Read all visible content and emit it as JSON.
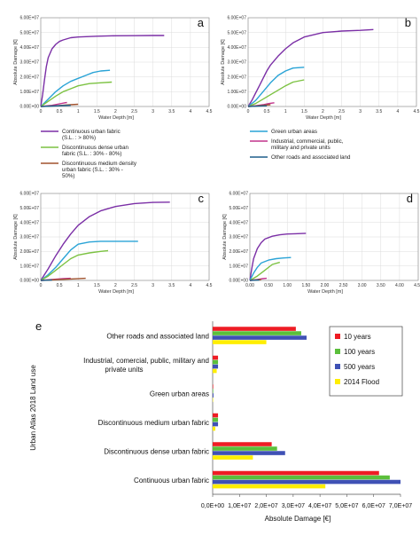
{
  "chart_data": [
    {
      "type": "line",
      "panel": "a",
      "xlabel": "Water Depth [m]",
      "ylabel": "Absolute Damage [€]",
      "xlim": [
        0,
        4.5
      ],
      "ylim": [
        0,
        60000000
      ],
      "xticks": [
        "0",
        "0.5",
        "1",
        "1.5",
        "2",
        "2.5",
        "3",
        "3.5",
        "4",
        "4.5"
      ],
      "yticks": [
        "0.00E+00",
        "1.00E+07",
        "2.00E+07",
        "3.00E+07",
        "4.00E+07",
        "5.00E+07",
        "6.00E+07"
      ],
      "series": [
        {
          "name": "Continuous urban fabric (S.L. : > 80%)",
          "color": "#7b2fa6",
          "x": [
            0,
            0.05,
            0.1,
            0.15,
            0.2,
            0.3,
            0.4,
            0.5,
            0.6,
            0.8,
            1.0,
            1.5,
            2.0,
            2.5,
            3.0,
            3.3
          ],
          "y": [
            0,
            8000000,
            18000000,
            27000000,
            33000000,
            39000000,
            42000000,
            44000000,
            45000000,
            46500000,
            47000000,
            47500000,
            47800000,
            47900000,
            48000000,
            48000000
          ]
        },
        {
          "name": "Green urban areas",
          "color": "#29a3d6",
          "x": [
            0,
            0.2,
            0.4,
            0.6,
            0.8,
            1.0,
            1.2,
            1.4,
            1.6,
            1.85
          ],
          "y": [
            0,
            5000000,
            10000000,
            14000000,
            17000000,
            19000000,
            21000000,
            23000000,
            24000000,
            24500000
          ]
        },
        {
          "name": "Discontinuous dense urban fabric (S.L. : 30% - 80%)",
          "color": "#7cc242",
          "x": [
            0,
            0.2,
            0.4,
            0.6,
            0.8,
            1.0,
            1.3,
            1.6,
            1.9
          ],
          "y": [
            0,
            3500000,
            7000000,
            10000000,
            12000000,
            14000000,
            15500000,
            16000000,
            16500000
          ]
        },
        {
          "name": "Industrial, commercial, public, military and private units",
          "color": "#c2338b",
          "x": [
            0,
            0.3,
            0.5,
            0.65,
            0.7
          ],
          "y": [
            0,
            800000,
            1800000,
            2500000,
            2700000
          ]
        },
        {
          "name": "Discontinuous medium density urban fabric (S.L. : 30% - 50%)",
          "color": "#a0522d",
          "x": [
            0,
            0.4,
            0.8,
            1.0
          ],
          "y": [
            0,
            500000,
            1200000,
            1500000
          ]
        },
        {
          "name": "Other roads and associated land",
          "color": "#1f5f8b",
          "x": [
            0,
            0.3,
            0.6,
            0.8
          ],
          "y": [
            0,
            300000,
            600000,
            800000
          ]
        }
      ]
    },
    {
      "type": "line",
      "panel": "b",
      "xlabel": "Water Depth [m]",
      "ylabel": "Absolute Damage [€]",
      "xlim": [
        0,
        4.5
      ],
      "ylim": [
        0,
        60000000
      ],
      "xticks": [
        "0",
        "0.5",
        "1",
        "1.5",
        "2",
        "2.5",
        "3",
        "3.5",
        "4",
        "4.5"
      ],
      "yticks": [
        "0.00E+00",
        "1.00E+07",
        "2.00E+07",
        "3.00E+07",
        "4.00E+07",
        "5.00E+07",
        "6.00E+07"
      ],
      "series": [
        {
          "name": "Continuous urban fabric (S.L. : > 80%)",
          "color": "#7b2fa6",
          "x": [
            0,
            0.1,
            0.2,
            0.3,
            0.4,
            0.5,
            0.6,
            0.8,
            1.0,
            1.2,
            1.5,
            2.0,
            2.5,
            3.0,
            3.35
          ],
          "y": [
            0,
            4000000,
            9000000,
            14000000,
            19000000,
            24000000,
            28000000,
            34000000,
            39000000,
            43000000,
            47000000,
            50000000,
            51000000,
            51500000,
            52000000
          ]
        },
        {
          "name": "Green urban areas",
          "color": "#29a3d6",
          "x": [
            0,
            0.2,
            0.4,
            0.6,
            0.8,
            1.0,
            1.2,
            1.5
          ],
          "y": [
            0,
            4000000,
            10000000,
            16000000,
            21000000,
            24000000,
            26000000,
            26500000
          ]
        },
        {
          "name": "Discontinuous dense urban fabric (S.L. : 30% - 80%)",
          "color": "#7cc242",
          "x": [
            0,
            0.2,
            0.4,
            0.6,
            0.8,
            1.0,
            1.2,
            1.5
          ],
          "y": [
            0,
            2000000,
            5000000,
            8000000,
            11000000,
            14000000,
            16500000,
            18000000
          ]
        },
        {
          "name": "Industrial, commercial, public, military and private units",
          "color": "#c2338b",
          "x": [
            0,
            0.2,
            0.4,
            0.55,
            0.7
          ],
          "y": [
            0,
            500000,
            1200000,
            2000000,
            2500000
          ]
        },
        {
          "name": "Discontinuous medium density urban fabric (S.L. : 30% - 50%)",
          "color": "#a0522d",
          "x": [
            0,
            0.2,
            0.4,
            0.6
          ],
          "y": [
            0,
            300000,
            800000,
            1200000
          ]
        },
        {
          "name": "Other roads and associated land",
          "color": "#1f5f8b",
          "x": [
            0,
            0.2,
            0.4,
            0.5
          ],
          "y": [
            0,
            200000,
            400000,
            500000
          ]
        }
      ]
    },
    {
      "type": "line",
      "panel": "c",
      "xlabel": "Water Depth [m]",
      "ylabel": "Absolute Damage [€]",
      "xlim": [
        0,
        4.5
      ],
      "ylim": [
        0,
        60000000
      ],
      "xticks": [
        "0",
        "0.5",
        "1",
        "1.5",
        "2",
        "2.5",
        "3",
        "3.5",
        "4",
        "4.5"
      ],
      "yticks": [
        "0.00E+00",
        "1.00E+07",
        "2.00E+07",
        "3.00E+07",
        "4.00E+07",
        "5.00E+07",
        "6.00E+07"
      ],
      "series": [
        {
          "name": "Continuous urban fabric (S.L. : > 80%)",
          "color": "#7b2fa6",
          "x": [
            0,
            0.2,
            0.4,
            0.6,
            0.8,
            1.0,
            1.3,
            1.6,
            2.0,
            2.5,
            3.0,
            3.45
          ],
          "y": [
            0,
            8000000,
            17000000,
            25000000,
            32000000,
            38000000,
            44000000,
            48000000,
            51000000,
            53000000,
            53800000,
            54000000
          ]
        },
        {
          "name": "Green urban areas",
          "color": "#29a3d6",
          "x": [
            0,
            0.2,
            0.4,
            0.6,
            0.8,
            1.0,
            1.3,
            1.6,
            2.0,
            2.6
          ],
          "y": [
            0,
            4000000,
            9000000,
            15000000,
            21000000,
            25000000,
            26500000,
            27000000,
            27000000,
            27000000
          ]
        },
        {
          "name": "Discontinuous dense urban fabric (S.L. : 30% - 80%)",
          "color": "#7cc242",
          "x": [
            0,
            0.2,
            0.4,
            0.6,
            0.8,
            1.0,
            1.3,
            1.6,
            1.8
          ],
          "y": [
            0,
            3000000,
            7000000,
            11000000,
            15000000,
            17500000,
            19000000,
            20000000,
            20500000
          ]
        },
        {
          "name": "Industrial, commercial, public, military and private units",
          "color": "#c2338b",
          "x": [
            0,
            0.3,
            0.6,
            0.8
          ],
          "y": [
            0,
            600000,
            1200000,
            1500000
          ]
        },
        {
          "name": "Discontinuous medium density urban fabric (S.L. : 30% - 50%)",
          "color": "#a0522d",
          "x": [
            0,
            0.4,
            0.8,
            1.2
          ],
          "y": [
            0,
            500000,
            1000000,
            1500000
          ]
        },
        {
          "name": "Other roads and associated land",
          "color": "#1f5f8b",
          "x": [
            0,
            0.2,
            0.3
          ],
          "y": [
            0,
            200000,
            300000
          ]
        }
      ]
    },
    {
      "type": "line",
      "panel": "d",
      "xlabel": "Water Depth [m]",
      "ylabel": "Absolute Damage [€]",
      "xlim": [
        0,
        4.5
      ],
      "ylim": [
        0,
        60000000
      ],
      "xticks": [
        "0.00",
        "0.50",
        "1.00",
        "1.50",
        "2.00",
        "2.50",
        "3.00",
        "3.50",
        "4.00",
        "4.50"
      ],
      "yticks": [
        "0.00E+00",
        "1.00E+07",
        "2.00E+07",
        "3.00E+07",
        "4.00E+07",
        "5.00E+07",
        "6.00E+07"
      ],
      "series": [
        {
          "name": "Continuous urban fabric (S.L. : > 80%)",
          "color": "#7b2fa6",
          "x": [
            0,
            0.05,
            0.1,
            0.2,
            0.3,
            0.4,
            0.6,
            0.8,
            1.0,
            1.2,
            1.5
          ],
          "y": [
            0,
            8000000,
            15000000,
            22000000,
            26000000,
            28500000,
            30500000,
            31500000,
            32000000,
            32200000,
            32500000
          ]
        },
        {
          "name": "Green urban areas",
          "color": "#29a3d6",
          "x": [
            0,
            0.1,
            0.2,
            0.3,
            0.5,
            0.7,
            0.9,
            1.1
          ],
          "y": [
            0,
            5000000,
            9000000,
            12000000,
            14000000,
            15000000,
            15500000,
            15800000
          ]
        },
        {
          "name": "Discontinuous dense urban fabric (S.L. : 30% - 80%)",
          "color": "#7cc242",
          "x": [
            0,
            0.2,
            0.4,
            0.6,
            0.8
          ],
          "y": [
            0,
            3000000,
            7000000,
            11000000,
            12500000
          ]
        },
        {
          "name": "Industrial, commercial, public, military and private units",
          "color": "#c2338b",
          "x": [
            0,
            0.2,
            0.35,
            0.45
          ],
          "y": [
            0,
            600000,
            1200000,
            1500000
          ]
        },
        {
          "name": "Discontinuous medium density urban fabric (S.L. : 30% - 50%)",
          "color": "#a0522d",
          "x": [
            0,
            0.2,
            0.3
          ],
          "y": [
            0,
            400000,
            600000
          ]
        },
        {
          "name": "Other roads and associated land",
          "color": "#1f5f8b",
          "x": [
            0,
            0.15,
            0.25
          ],
          "y": [
            0,
            200000,
            300000
          ]
        }
      ]
    },
    {
      "type": "bar",
      "orientation": "horizontal",
      "panel": "e",
      "xlabel": "Absolute Damage [€]",
      "ylabel": "Urban Atlas 2018 Land use",
      "xlim": [
        0,
        70000000
      ],
      "xticks": [
        "0,0E+00",
        "1,0E+07",
        "2,0E+07",
        "3,0E+07",
        "4,0E+07",
        "5,0E+07",
        "6,0E+07",
        "7,0E+07"
      ],
      "categories": [
        "Other roads and associated land",
        "Industrial, comercial, public, military and private units",
        "Green urban areas",
        "Discontinuous medium urban fabric",
        "Discontinuous dense urban fabric",
        "Continuous urban fabric"
      ],
      "series": [
        {
          "name": "10 years",
          "color": "#ee1c24",
          "values": [
            31000000,
            2000000,
            200000,
            2000000,
            22000000,
            62000000
          ]
        },
        {
          "name": "100 years",
          "color": "#5bbf3b",
          "values": [
            33000000,
            2000000,
            200000,
            2000000,
            24000000,
            66000000
          ]
        },
        {
          "name": "500 years",
          "color": "#3f51b5",
          "values": [
            35000000,
            2000000,
            300000,
            2000000,
            27000000,
            70000000
          ]
        },
        {
          "name": "2014 Flood",
          "color": "#ffee00",
          "values": [
            20000000,
            1500000,
            100000,
            1000000,
            15000000,
            42000000
          ]
        }
      ],
      "legend_position": "right"
    }
  ],
  "legend": {
    "items": [
      {
        "label": "Continuous urban fabric (S.L. : > 80%)",
        "color": "#7b2fa6"
      },
      {
        "label": "Discontinuous dense urban fabric (S.L. : 30% - 80%)",
        "color": "#7cc242"
      },
      {
        "label": "Discontinuous medium density urban fabric (S.L. : 30% - 50%)",
        "color": "#a0522d"
      },
      {
        "label": "Green urban areas",
        "color": "#29a3d6"
      },
      {
        "label": "Industrial, commercial, public, military and private units",
        "color": "#c2338b"
      },
      {
        "label": "Other roads and associated land",
        "color": "#1f5f8b"
      }
    ]
  }
}
